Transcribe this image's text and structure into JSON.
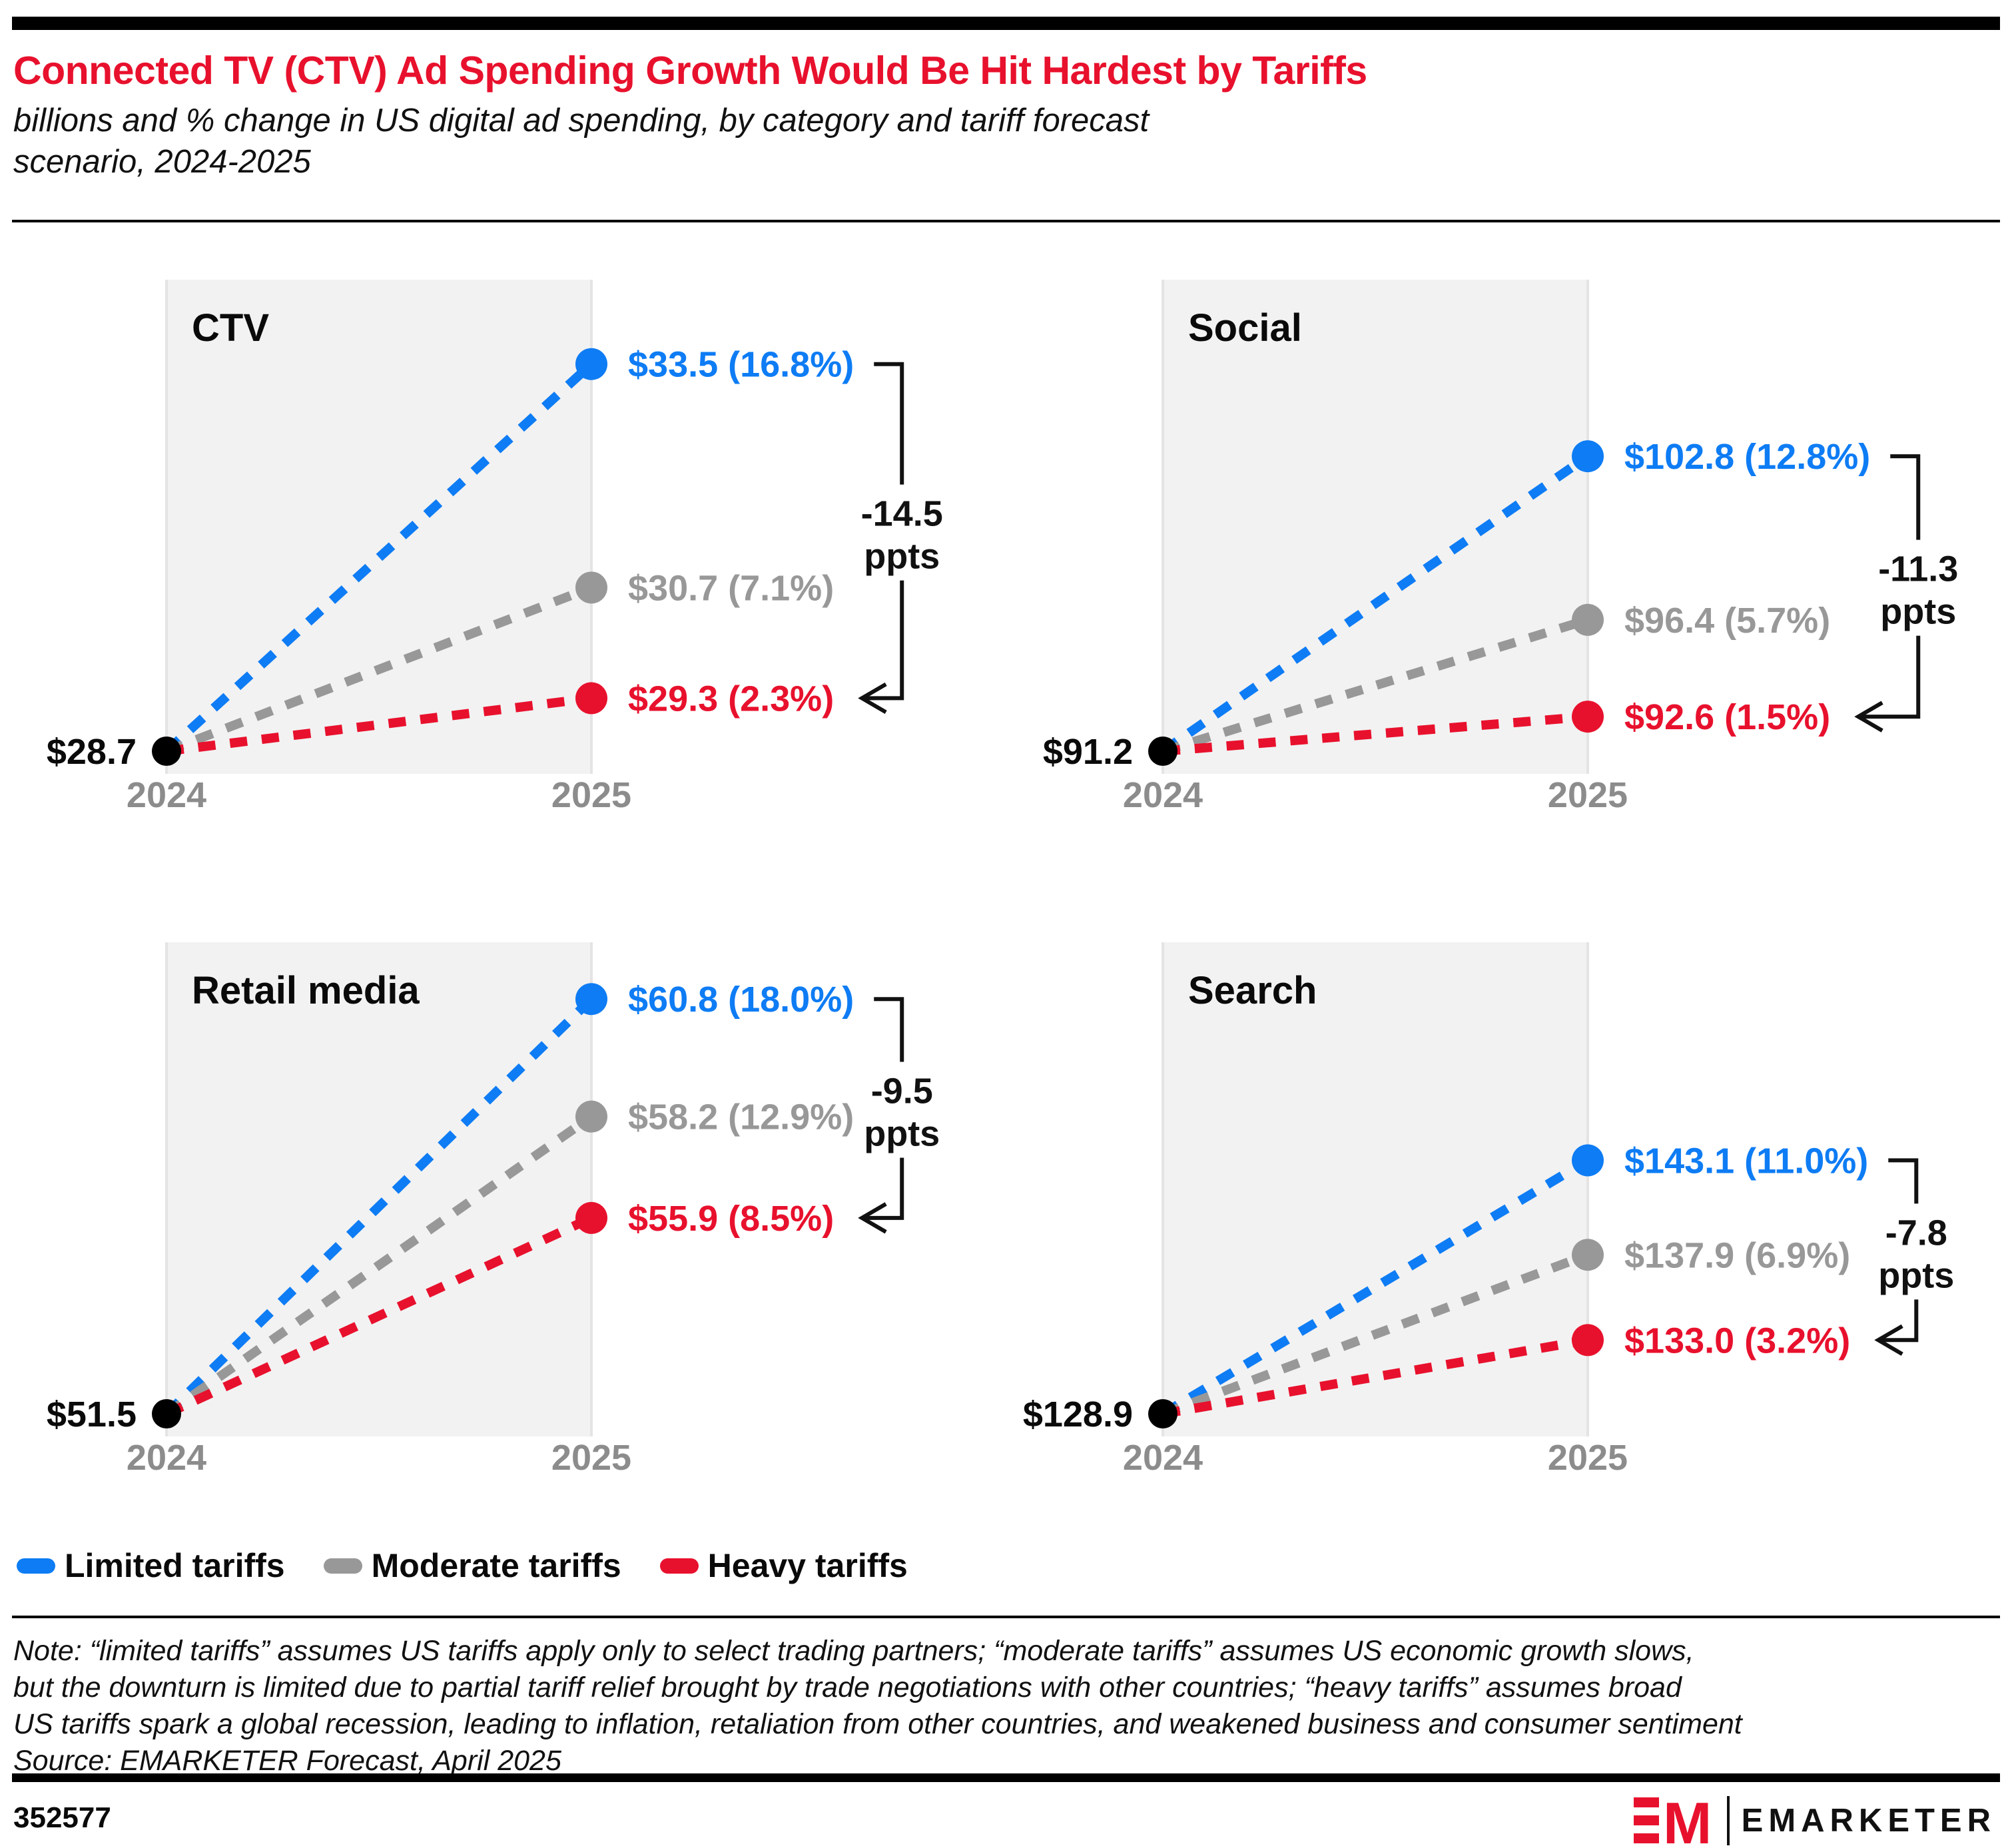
{
  "header": {
    "title": "Connected TV (CTV) Ad Spending Growth Would Be Hit Hardest by Tariffs",
    "subtitle_lines": [
      "billions and % change in US digital ad spending, by category and tariff forecast",
      "scenario, 2024-2025"
    ]
  },
  "colors": {
    "title_red": "#e8112d",
    "limited_blue": "#0e7cf4",
    "moderate_gray": "#989898",
    "heavy_red": "#e8112d",
    "strip_bg": "#f2f2f2",
    "strip_edge": "#e4e4e4",
    "year_label_gray": "#8c8c8c",
    "bracket_black": "#111111"
  },
  "chart_data": {
    "type": "line",
    "variant": "slope-chart-small-multiples",
    "unit": "US$ billions",
    "x_labels": [
      "2024",
      "2025"
    ],
    "grid": false,
    "scenarios": [
      {
        "name": "Limited tariffs",
        "color": "#0e7cf4"
      },
      {
        "name": "Moderate tariffs",
        "color": "#989898"
      },
      {
        "name": "Heavy tariffs",
        "color": "#e8112d"
      }
    ],
    "panels": [
      {
        "title": "CTV",
        "start": {
          "label": "$28.7",
          "value": 28.7,
          "year": 2024
        },
        "end": [
          {
            "scenario": "Limited tariffs",
            "label": "$33.5 (16.8%)",
            "value": 33.5,
            "pct_growth": 16.8
          },
          {
            "scenario": "Moderate tariffs",
            "label": "$30.7 (7.1%)",
            "value": 30.7,
            "pct_growth": 7.1
          },
          {
            "scenario": "Heavy tariffs",
            "label": "$29.3 (2.3%)",
            "value": 29.3,
            "pct_growth": 2.3
          }
        ],
        "delta": {
          "text": "-14.5",
          "unit": "ppts"
        }
      },
      {
        "title": "Social",
        "start": {
          "label": "$91.2",
          "value": 91.2,
          "year": 2024
        },
        "end": [
          {
            "scenario": "Limited tariffs",
            "label": "$102.8 (12.8%)",
            "value": 102.8,
            "pct_growth": 12.8
          },
          {
            "scenario": "Moderate tariffs",
            "label": "$96.4 (5.7%)",
            "value": 96.4,
            "pct_growth": 5.7
          },
          {
            "scenario": "Heavy tariffs",
            "label": "$92.6 (1.5%)",
            "value": 92.6,
            "pct_growth": 1.5
          }
        ],
        "delta": {
          "text": "-11.3",
          "unit": "ppts"
        }
      },
      {
        "title": "Retail media",
        "start": {
          "label": "$51.5",
          "value": 51.5,
          "year": 2024
        },
        "end": [
          {
            "scenario": "Limited tariffs",
            "label": "$60.8 (18.0%)",
            "value": 60.8,
            "pct_growth": 18.0
          },
          {
            "scenario": "Moderate tariffs",
            "label": "$58.2 (12.9%)",
            "value": 58.2,
            "pct_growth": 12.9
          },
          {
            "scenario": "Heavy tariffs",
            "label": "$55.9 (8.5%)",
            "value": 55.9,
            "pct_growth": 8.5
          }
        ],
        "delta": {
          "text": "-9.5",
          "unit": "ppts"
        }
      },
      {
        "title": "Search",
        "start": {
          "label": "$128.9",
          "value": 128.9,
          "year": 2024
        },
        "end": [
          {
            "scenario": "Limited tariffs",
            "label": "$143.1 (11.0%)",
            "value": 143.1,
            "pct_growth": 11.0
          },
          {
            "scenario": "Moderate tariffs",
            "label": "$137.9 (6.9%)",
            "value": 137.9,
            "pct_growth": 6.9
          },
          {
            "scenario": "Heavy tariffs",
            "label": "$133.0 (3.2%)",
            "value": 133.0,
            "pct_growth": 3.2
          }
        ],
        "delta": {
          "text": "-7.8",
          "unit": "ppts"
        }
      }
    ]
  },
  "legend": {
    "items": [
      {
        "label": "Limited tariffs",
        "color": "#0e7cf4"
      },
      {
        "label": "Moderate tariffs",
        "color": "#989898"
      },
      {
        "label": "Heavy tariffs",
        "color": "#e8112d"
      }
    ]
  },
  "note": {
    "lines": [
      "Note: “limited tariffs” assumes US tariffs apply only to select trading partners; “moderate tariffs” assumes US economic growth slows,",
      "but the downturn is limited due to partial tariff relief brought by trade negotiations with other countries; “heavy tariffs” assumes broad",
      "US tariffs spark a global recession, leading to inflation, retaliation from other countries, and weakened business and consumer sentiment"
    ],
    "source": "Source: EMARKETER Forecast, April 2025"
  },
  "footer": {
    "chart_id": "352577",
    "brand": "EMARKETER",
    "brand_mark": "EM"
  }
}
